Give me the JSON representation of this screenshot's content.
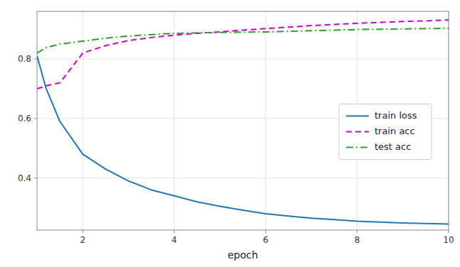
{
  "chart_data": {
    "type": "line",
    "x": [
      1,
      1.2,
      1.5,
      2,
      2.5,
      3,
      3.5,
      4,
      4.5,
      5,
      5.5,
      6,
      6.5,
      7,
      7.5,
      8,
      8.5,
      9,
      9.5,
      10
    ],
    "series": [
      {
        "name": "train loss",
        "color": "#1f77b4",
        "line_style": "solid",
        "values": [
          0.81,
          0.7,
          0.59,
          0.48,
          0.43,
          0.39,
          0.36,
          0.34,
          0.32,
          0.305,
          0.292,
          0.28,
          0.272,
          0.265,
          0.26,
          0.255,
          0.252,
          0.249,
          0.247,
          0.245
        ]
      },
      {
        "name": "train acc",
        "color": "#cc00cc",
        "line_style": "dashed",
        "values": [
          0.7,
          0.71,
          0.72,
          0.82,
          0.845,
          0.862,
          0.872,
          0.88,
          0.886,
          0.891,
          0.897,
          0.902,
          0.907,
          0.912,
          0.916,
          0.92,
          0.923,
          0.926,
          0.928,
          0.931
        ]
      },
      {
        "name": "test acc",
        "color": "#2ca02c",
        "line_style": "dashdot",
        "values": [
          0.82,
          0.838,
          0.85,
          0.86,
          0.87,
          0.877,
          0.882,
          0.886,
          0.888,
          0.889,
          0.89,
          0.891,
          0.893,
          0.895,
          0.897,
          0.899,
          0.9,
          0.901,
          0.902,
          0.903
        ]
      }
    ],
    "xlabel": "epoch",
    "xlim": [
      1,
      10
    ],
    "ylim": [
      0.225,
      0.96
    ],
    "xticks": [
      2,
      4,
      6,
      8,
      10
    ],
    "yticks": [
      0.4,
      0.6,
      0.8
    ],
    "grid": true,
    "legend": "right"
  }
}
